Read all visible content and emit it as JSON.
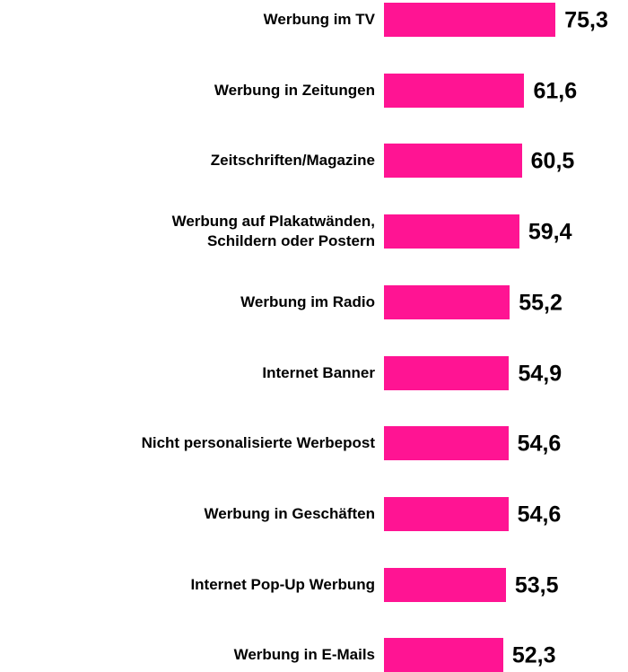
{
  "chart_data": {
    "type": "bar",
    "orientation": "horizontal",
    "categories": [
      "Werbung im TV",
      "Werbung in Zeitungen",
      "Zeitschriften/Magazine",
      "Werbung auf Plakatwänden,\nSchildern oder Postern",
      "Werbung im Radio",
      "Internet Banner",
      "Nicht personalisierte Werbepost",
      "Werbung in Geschäften",
      "Internet Pop-Up Werbung",
      "Werbung in E-Mails"
    ],
    "values": [
      75.3,
      61.6,
      60.5,
      59.4,
      55.2,
      54.9,
      54.6,
      54.6,
      53.5,
      52.3
    ],
    "value_labels": [
      "75,3",
      "61,6",
      "60,5",
      "59,4",
      "55,2",
      "54,9",
      "54,6",
      "54,6",
      "53,5",
      "52,3"
    ],
    "color": "#ff1493",
    "xlim": [
      0,
      100
    ]
  }
}
